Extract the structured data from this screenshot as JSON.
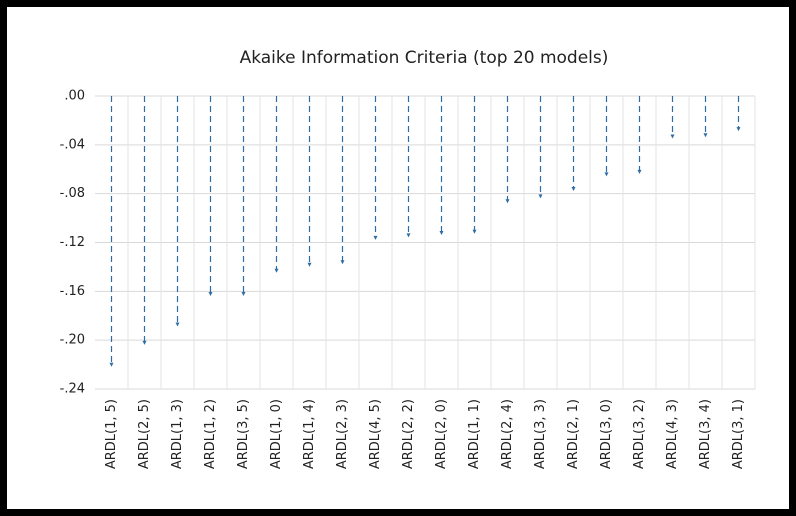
{
  "chart_data": {
    "type": "dropline",
    "title": "Akaike Information Criteria (top 20 models)",
    "categories": [
      "ARDL(1, 5)",
      "ARDL(2, 5)",
      "ARDL(1, 3)",
      "ARDL(1, 2)",
      "ARDL(3, 5)",
      "ARDL(1, 0)",
      "ARDL(1, 4)",
      "ARDL(2, 3)",
      "ARDL(4, 5)",
      "ARDL(2, 2)",
      "ARDL(2, 0)",
      "ARDL(1, 1)",
      "ARDL(2, 4)",
      "ARDL(3, 3)",
      "ARDL(2, 1)",
      "ARDL(3, 0)",
      "ARDL(3, 2)",
      "ARDL(4, 3)",
      "ARDL(3, 4)",
      "ARDL(3, 1)"
    ],
    "values": [
      -0.221,
      -0.203,
      -0.188,
      -0.163,
      -0.163,
      -0.144,
      -0.139,
      -0.137,
      -0.117,
      -0.115,
      -0.113,
      -0.112,
      -0.087,
      -0.083,
      -0.077,
      -0.065,
      -0.063,
      -0.034,
      -0.033,
      -0.028
    ],
    "color": "#2e6da4",
    "ylim": [
      -0.24,
      0
    ],
    "yticks": [
      {
        "value": 0,
        "label": ".00"
      },
      {
        "value": -0.04,
        "label": "-.04"
      },
      {
        "value": -0.08,
        "label": "-.08"
      },
      {
        "value": -0.12,
        "label": "-.12"
      },
      {
        "value": -0.16,
        "label": "-.16"
      },
      {
        "value": -0.2,
        "label": "-.20"
      },
      {
        "value": -0.24,
        "label": "-.24"
      }
    ],
    "grid": true
  }
}
